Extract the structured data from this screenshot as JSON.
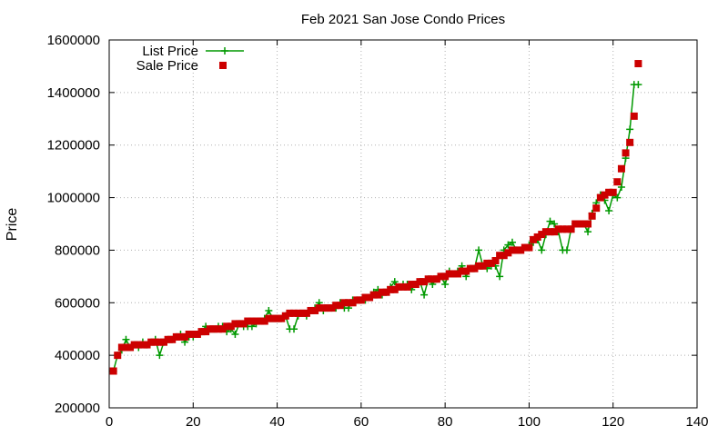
{
  "chart_data": {
    "type": "line",
    "title": "Feb 2021 San Jose Condo Prices",
    "xlabel": "",
    "ylabel": "Price",
    "xlim": [
      0,
      140
    ],
    "ylim": [
      200000,
      1600000
    ],
    "x_ticks": [
      0,
      20,
      40,
      60,
      80,
      100,
      120,
      140
    ],
    "y_ticks": [
      200000,
      400000,
      600000,
      800000,
      1000000,
      1200000,
      1400000,
      1600000
    ],
    "x_tick_labels": [
      "0",
      "20",
      "40",
      "60",
      "80",
      "100",
      "120",
      "140"
    ],
    "y_tick_labels": [
      "200000",
      "400000",
      "600000",
      "800000",
      "1000000",
      "1200000",
      "1400000",
      "1600000"
    ],
    "grid": true,
    "legend_position": "top-left",
    "series": [
      {
        "name": "List Price",
        "style": "line with plus markers",
        "color": "#009900",
        "x": [
          1,
          2,
          3,
          4,
          5,
          6,
          7,
          8,
          9,
          10,
          11,
          12,
          13,
          14,
          15,
          16,
          17,
          18,
          19,
          20,
          21,
          22,
          23,
          24,
          25,
          26,
          27,
          28,
          29,
          30,
          31,
          32,
          33,
          34,
          35,
          36,
          37,
          38,
          39,
          40,
          41,
          42,
          43,
          44,
          45,
          46,
          47,
          48,
          49,
          50,
          51,
          52,
          53,
          54,
          55,
          56,
          57,
          58,
          59,
          60,
          61,
          62,
          63,
          64,
          65,
          66,
          67,
          68,
          69,
          70,
          71,
          72,
          73,
          74,
          75,
          76,
          77,
          78,
          79,
          80,
          81,
          82,
          83,
          84,
          85,
          86,
          87,
          88,
          89,
          90,
          91,
          92,
          93,
          94,
          95,
          96,
          97,
          98,
          99,
          100,
          101,
          102,
          103,
          104,
          105,
          106,
          107,
          108,
          109,
          110,
          111,
          112,
          113,
          114,
          115,
          116,
          117,
          118,
          119,
          120,
          121,
          122,
          123,
          124,
          125,
          126
        ],
        "values": [
          340000,
          400000,
          420000,
          460000,
          430000,
          440000,
          430000,
          450000,
          440000,
          450000,
          460000,
          400000,
          450000,
          460000,
          460000,
          470000,
          480000,
          450000,
          470000,
          470000,
          480000,
          490000,
          510000,
          500000,
          500000,
          510000,
          510000,
          490000,
          500000,
          480000,
          520000,
          510000,
          510000,
          510000,
          520000,
          530000,
          540000,
          570000,
          540000,
          540000,
          540000,
          550000,
          500000,
          500000,
          550000,
          560000,
          550000,
          570000,
          580000,
          600000,
          570000,
          580000,
          580000,
          580000,
          600000,
          580000,
          580000,
          610000,
          610000,
          610000,
          610000,
          620000,
          640000,
          650000,
          630000,
          640000,
          660000,
          680000,
          660000,
          670000,
          670000,
          650000,
          670000,
          680000,
          630000,
          690000,
          670000,
          690000,
          700000,
          670000,
          720000,
          710000,
          720000,
          740000,
          700000,
          730000,
          730000,
          800000,
          740000,
          730000,
          740000,
          740000,
          700000,
          800000,
          820000,
          830000,
          800000,
          800000,
          810000,
          820000,
          830000,
          840000,
          800000,
          860000,
          910000,
          900000,
          870000,
          800000,
          800000,
          880000,
          900000,
          900000,
          900000,
          870000,
          940000,
          980000,
          1010000,
          990000,
          950000,
          1010000,
          1000000,
          1040000,
          1150000,
          1260000,
          1430000,
          1430000
        ]
      },
      {
        "name": "Sale Price",
        "style": "square markers",
        "color": "#cc0000",
        "x": [
          1,
          2,
          3,
          4,
          5,
          6,
          7,
          8,
          9,
          10,
          11,
          12,
          13,
          14,
          15,
          16,
          17,
          18,
          19,
          20,
          21,
          22,
          23,
          24,
          25,
          26,
          27,
          28,
          29,
          30,
          31,
          32,
          33,
          34,
          35,
          36,
          37,
          38,
          39,
          40,
          41,
          42,
          43,
          44,
          45,
          46,
          47,
          48,
          49,
          50,
          51,
          52,
          53,
          54,
          55,
          56,
          57,
          58,
          59,
          60,
          61,
          62,
          63,
          64,
          65,
          66,
          67,
          68,
          69,
          70,
          71,
          72,
          73,
          74,
          75,
          76,
          77,
          78,
          79,
          80,
          81,
          82,
          83,
          84,
          85,
          86,
          87,
          88,
          89,
          90,
          91,
          92,
          93,
          94,
          95,
          96,
          97,
          98,
          99,
          100,
          101,
          102,
          103,
          104,
          105,
          106,
          107,
          108,
          109,
          110,
          111,
          112,
          113,
          114,
          115,
          116,
          117,
          118,
          119,
          120,
          121,
          122,
          123,
          124,
          125,
          126
        ],
        "values": [
          340000,
          400000,
          430000,
          430000,
          430000,
          440000,
          440000,
          440000,
          440000,
          450000,
          450000,
          450000,
          450000,
          460000,
          460000,
          470000,
          470000,
          470000,
          480000,
          480000,
          480000,
          490000,
          490000,
          500000,
          500000,
          500000,
          500000,
          510000,
          510000,
          520000,
          520000,
          520000,
          530000,
          530000,
          530000,
          530000,
          530000,
          540000,
          540000,
          540000,
          540000,
          550000,
          560000,
          560000,
          560000,
          560000,
          560000,
          570000,
          570000,
          580000,
          580000,
          580000,
          580000,
          590000,
          590000,
          600000,
          600000,
          600000,
          610000,
          610000,
          620000,
          620000,
          630000,
          630000,
          640000,
          640000,
          650000,
          650000,
          660000,
          660000,
          660000,
          670000,
          670000,
          680000,
          680000,
          690000,
          690000,
          690000,
          700000,
          700000,
          710000,
          710000,
          710000,
          720000,
          720000,
          730000,
          730000,
          740000,
          740000,
          750000,
          750000,
          760000,
          780000,
          780000,
          790000,
          800000,
          800000,
          800000,
          810000,
          810000,
          840000,
          850000,
          860000,
          870000,
          870000,
          870000,
          880000,
          880000,
          880000,
          880000,
          900000,
          900000,
          900000,
          900000,
          930000,
          960000,
          1000000,
          1010000,
          1020000,
          1020000,
          1060000,
          1110000,
          1170000,
          1210000,
          1310000,
          1510000
        ]
      }
    ]
  }
}
